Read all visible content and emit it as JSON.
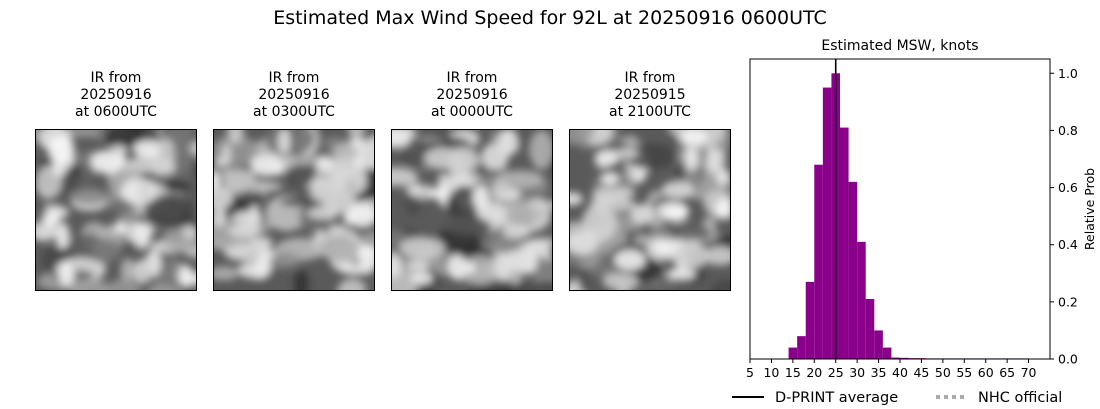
{
  "page": {
    "suptitle": "Estimated Max Wind Speed for 92L at 20250916 0600UTC"
  },
  "ir_panels": [
    {
      "line1": "IR from",
      "line2": "20250916",
      "line3": "at 0600UTC"
    },
    {
      "line1": "IR from",
      "line2": "20250916",
      "line3": "at 0300UTC"
    },
    {
      "line1": "IR from",
      "line2": "20250916",
      "line3": "at 0000UTC"
    },
    {
      "line1": "IR from",
      "line2": "20250915",
      "line3": "at 2100UTC"
    }
  ],
  "chart_data": {
    "type": "bar",
    "title": "Estimated MSW, knots",
    "xlabel": "",
    "ylabel": "Relative Prob",
    "xlim": [
      5,
      75
    ],
    "ylim": [
      0,
      1.05
    ],
    "xticks": [
      5,
      10,
      15,
      20,
      25,
      30,
      35,
      40,
      45,
      50,
      55,
      60,
      65,
      70
    ],
    "yticks": [
      0.0,
      0.2,
      0.4,
      0.6,
      0.8,
      1.0
    ],
    "ytick_labels": [
      "0.0",
      "0.2",
      "0.4",
      "0.6",
      "0.8",
      "1.0"
    ],
    "bin_width": 2,
    "bar_color": "#8b008b",
    "bins": [
      {
        "x": 15,
        "y": 0.04
      },
      {
        "x": 17,
        "y": 0.08
      },
      {
        "x": 19,
        "y": 0.27
      },
      {
        "x": 21,
        "y": 0.68
      },
      {
        "x": 23,
        "y": 0.95
      },
      {
        "x": 25,
        "y": 1.0
      },
      {
        "x": 27,
        "y": 0.81
      },
      {
        "x": 29,
        "y": 0.62
      },
      {
        "x": 31,
        "y": 0.41
      },
      {
        "x": 33,
        "y": 0.21
      },
      {
        "x": 35,
        "y": 0.1
      },
      {
        "x": 37,
        "y": 0.04
      },
      {
        "x": 39,
        "y": 0.005
      },
      {
        "x": 41,
        "y": 0.004
      },
      {
        "x": 43,
        "y": 0.003
      },
      {
        "x": 45,
        "y": 0.003
      },
      {
        "x": 47,
        "y": 0.002
      },
      {
        "x": 49,
        "y": 0.002
      },
      {
        "x": 51,
        "y": 0.002
      },
      {
        "x": 53,
        "y": 0.002
      },
      {
        "x": 55,
        "y": 0.002
      },
      {
        "x": 57,
        "y": 0.002
      },
      {
        "x": 59,
        "y": 0.002
      },
      {
        "x": 61,
        "y": 0.002
      },
      {
        "x": 63,
        "y": 0.002
      },
      {
        "x": 65,
        "y": 0.002
      },
      {
        "x": 67,
        "y": 0.002
      },
      {
        "x": 69,
        "y": 0.002
      }
    ],
    "average_line": {
      "x": 25,
      "color": "#000000"
    },
    "legend": {
      "placement": "bottom",
      "entries": [
        {
          "name": "D-PRINT average",
          "style": "solid",
          "color": "#000000"
        },
        {
          "name": "NHC official",
          "style": "dotted",
          "color": "#aaaaaa"
        }
      ]
    }
  }
}
